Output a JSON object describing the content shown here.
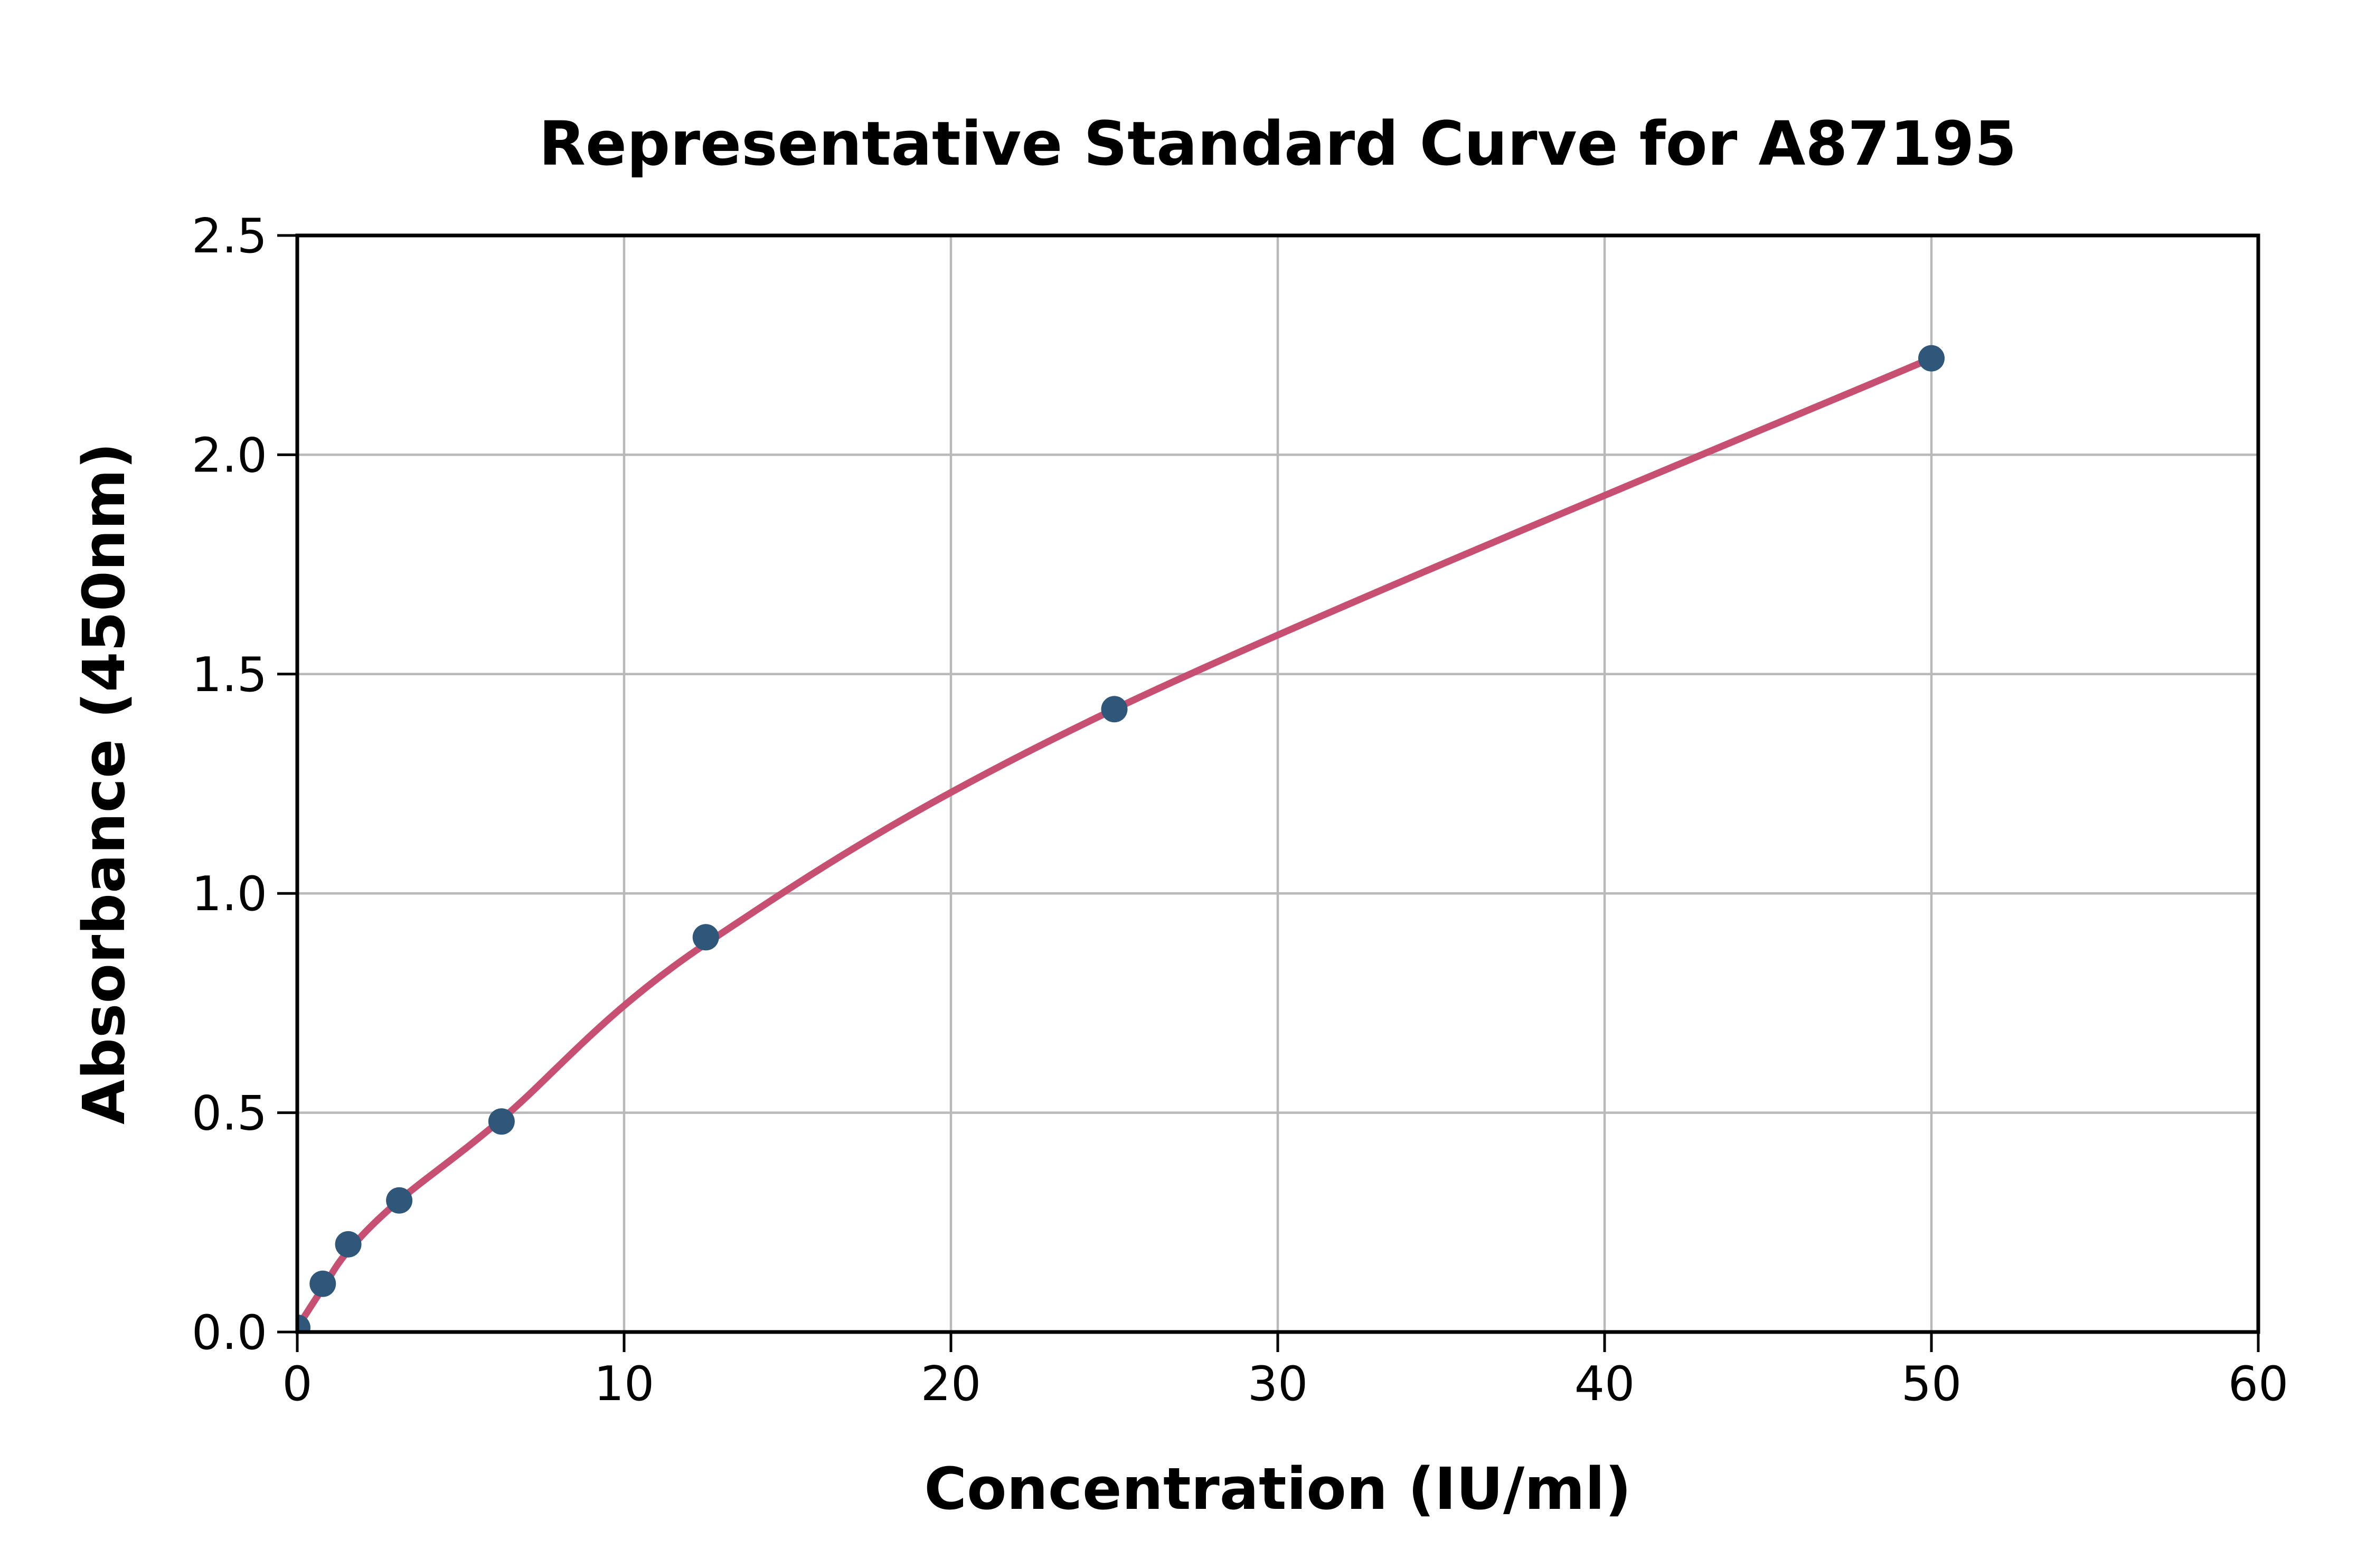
{
  "chart_data": {
    "type": "scatter",
    "title": "Representative Standard Curve for A87195",
    "xlabel": "Concentration (IU/ml)",
    "ylabel": "Absorbance (450nm)",
    "xlim": [
      0,
      60
    ],
    "ylim": [
      0,
      2.5
    ],
    "x_ticks": [
      0,
      10,
      20,
      30,
      40,
      50,
      60
    ],
    "x_tick_labels": [
      "0",
      "10",
      "20",
      "30",
      "40",
      "50",
      "60"
    ],
    "y_ticks": [
      0,
      0.5,
      1,
      1.5,
      2,
      2.5
    ],
    "y_tick_labels": [
      "0.0",
      "0.5",
      "1.0",
      "1.5",
      "2.0",
      "2.5"
    ],
    "grid": true,
    "legend_position": "none",
    "series": [
      {
        "name": "standard-points",
        "type": "scatter",
        "x": [
          0,
          0.78,
          1.56,
          3.12,
          6.25,
          12.5,
          25,
          50
        ],
        "y": [
          0.01,
          0.11,
          0.2,
          0.3,
          0.48,
          0.9,
          1.42,
          2.22
        ],
        "color": "#2f5779"
      },
      {
        "name": "fitted-curve",
        "type": "line",
        "x": [
          0,
          0.78,
          1.56,
          3.12,
          6.25,
          12.5,
          25,
          50
        ],
        "y": [
          0.01,
          0.1,
          0.185,
          0.3,
          0.485,
          0.885,
          1.42,
          2.22
        ],
        "color": "#c64f72"
      }
    ],
    "colors": {
      "background": "#ffffff",
      "grid": "#b9b9b9",
      "axis": "#000000",
      "tick_label": "#000000",
      "marker": "#2f5779",
      "curve": "#c64f72"
    }
  }
}
